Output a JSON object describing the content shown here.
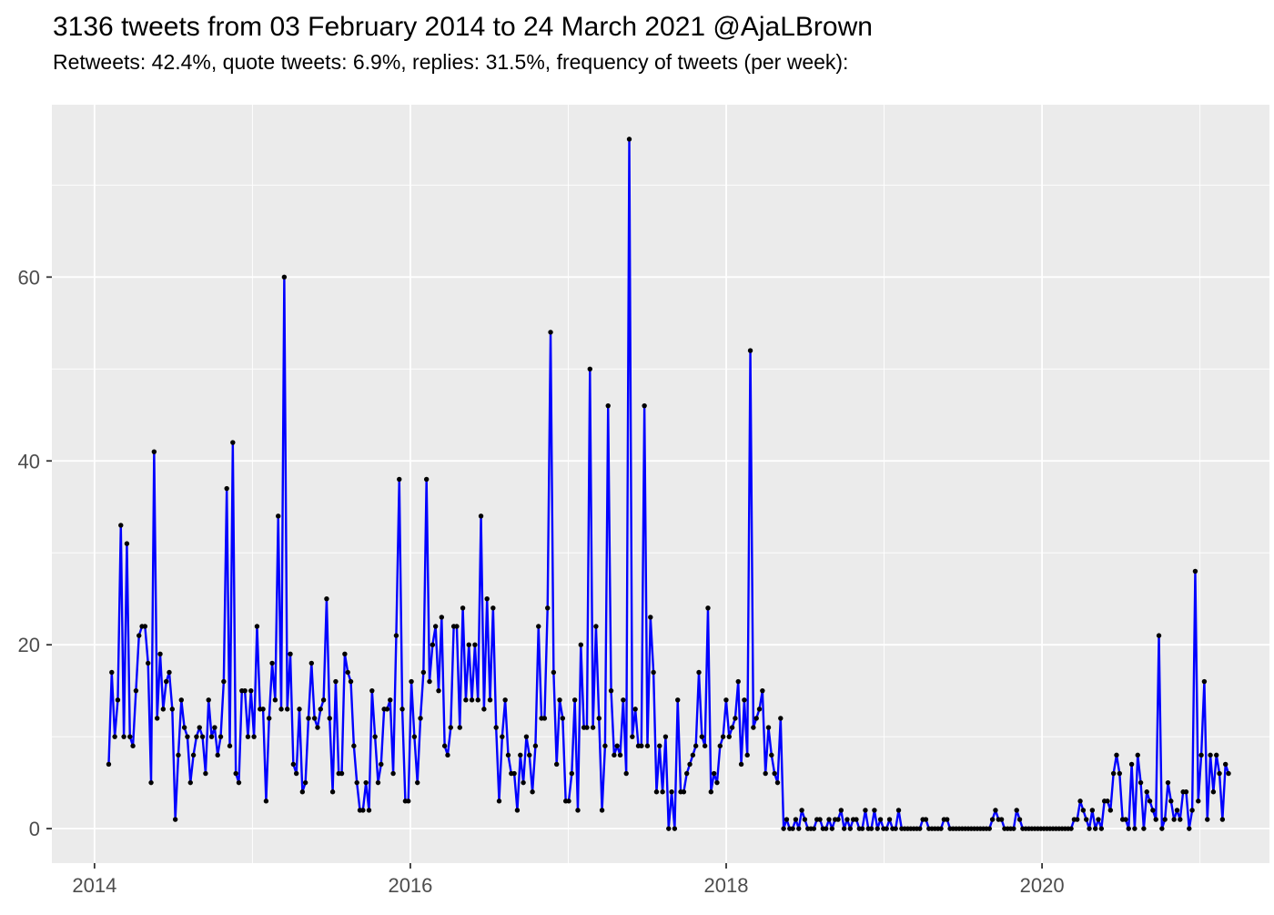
{
  "header": {
    "title": "3136 tweets from 03 February 2014 to 24 March 2021 @AjaLBrown",
    "subtitle": "Retweets: 42.4%, quote tweets: 6.9%, replies: 31.5%, frequency of tweets (per week):"
  },
  "chart_data": {
    "type": "line",
    "title": "3136 tweets from 03 February 2014 to 24 March 2021 @AjaLBrown",
    "subtitle": "Retweets: 42.4%, quote tweets: 6.9%, replies: 31.5%, frequency of tweets (per week):",
    "xlabel": "",
    "ylabel": "",
    "x_start_date": "03 February 2014",
    "x_end_date": "24 March 2021",
    "x_tick_labels": [
      "2014",
      "2016",
      "2018",
      "2020"
    ],
    "x_tick_years": [
      2014,
      2016,
      2018,
      2020
    ],
    "x_minor_years": [
      2015,
      2017,
      2019,
      2021
    ],
    "y_tick_labels": [
      "0",
      "20",
      "40",
      "60"
    ],
    "y_ticks": [
      0,
      20,
      40,
      60
    ],
    "y_minor_ticks": [
      10,
      30,
      50,
      70
    ],
    "ylim": [
      -3.75,
      78.75
    ],
    "xlim_years": [
      2013.73,
      2021.44
    ],
    "series_start_year": 2014.09,
    "weeks_per_year": 52.18,
    "grid": "on",
    "legend": "none",
    "panel_bg": "#EBEBEB",
    "grid_color": "#FFFFFF",
    "line_color": "#0000FF",
    "point_color": "#000000",
    "axis_text_color": "#4d4d4d",
    "tick_mark_color": "#333333",
    "values": [
      7,
      17,
      10,
      14,
      33,
      10,
      31,
      10,
      9,
      15,
      21,
      22,
      22,
      18,
      5,
      41,
      12,
      19,
      13,
      16,
      17,
      13,
      1,
      8,
      14,
      11,
      10,
      5,
      8,
      10,
      11,
      10,
      6,
      14,
      10,
      11,
      8,
      10,
      16,
      37,
      9,
      42,
      6,
      5,
      15,
      15,
      10,
      15,
      10,
      22,
      13,
      13,
      3,
      12,
      18,
      14,
      34,
      13,
      60,
      13,
      19,
      7,
      6,
      13,
      4,
      5,
      12,
      18,
      12,
      11,
      13,
      14,
      25,
      12,
      4,
      16,
      6,
      6,
      19,
      17,
      16,
      9,
      5,
      2,
      2,
      5,
      2,
      15,
      10,
      5,
      7,
      13,
      13,
      14,
      6,
      21,
      38,
      13,
      3,
      3,
      16,
      10,
      5,
      12,
      17,
      38,
      16,
      20,
      22,
      15,
      23,
      9,
      8,
      11,
      22,
      22,
      11,
      24,
      14,
      20,
      14,
      20,
      14,
      34,
      13,
      25,
      14,
      24,
      11,
      3,
      10,
      14,
      8,
      6,
      6,
      2,
      8,
      5,
      10,
      8,
      4,
      9,
      22,
      12,
      12,
      24,
      54,
      17,
      7,
      14,
      12,
      3,
      3,
      6,
      14,
      2,
      20,
      11,
      11,
      50,
      11,
      22,
      12,
      2,
      9,
      46,
      15,
      8,
      9,
      8,
      14,
      6,
      75,
      10,
      13,
      9,
      9,
      46,
      9,
      23,
      17,
      4,
      9,
      4,
      10,
      0,
      4,
      0,
      14,
      4,
      4,
      6,
      7,
      8,
      9,
      17,
      10,
      9,
      24,
      4,
      6,
      5,
      9,
      10,
      14,
      10,
      11,
      12,
      16,
      7,
      14,
      8,
      52,
      11,
      12,
      13,
      15,
      6,
      11,
      8,
      6,
      5,
      12,
      0,
      1,
      0,
      0,
      1,
      0,
      2,
      1,
      0,
      0,
      0,
      1,
      1,
      0,
      0,
      1,
      0,
      1,
      1,
      2,
      0,
      1,
      0,
      1,
      1,
      0,
      0,
      2,
      0,
      0,
      2,
      0,
      1,
      0,
      0,
      1,
      0,
      0,
      2,
      0,
      0,
      0,
      0,
      0,
      0,
      0,
      1,
      1,
      0,
      0,
      0,
      0,
      0,
      1,
      1,
      0,
      0,
      0,
      0,
      0,
      0,
      0,
      0,
      0,
      0,
      0,
      0,
      0,
      0,
      1,
      2,
      1,
      1,
      0,
      0,
      0,
      0,
      2,
      1,
      0,
      0,
      0,
      0,
      0,
      0,
      0,
      0,
      0,
      0,
      0,
      0,
      0,
      0,
      0,
      0,
      0,
      1,
      1,
      3,
      2,
      1,
      0,
      2,
      0,
      1,
      0,
      3,
      3,
      2,
      6,
      8,
      6,
      1,
      1,
      0,
      7,
      0,
      8,
      5,
      0,
      4,
      3,
      2,
      1,
      21,
      0,
      1,
      5,
      3,
      1,
      2,
      1,
      4,
      4,
      0,
      2,
      28,
      3,
      8,
      16,
      1,
      8,
      4,
      8,
      6,
      1,
      7,
      6
    ]
  }
}
